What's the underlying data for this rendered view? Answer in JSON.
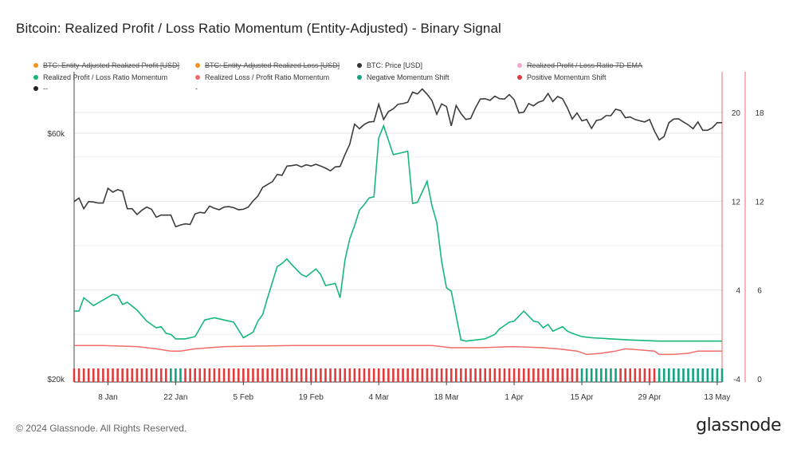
{
  "title": "Bitcoin: Realized Profit / Loss Ratio Momentum (Entity-Adjusted) - Binary Signal",
  "footer": "© 2024 Glassnode. All Rights Reserved.",
  "brand": "glassnode",
  "legend": [
    {
      "label": "BTC: Entity-Adjusted Realized Profit [USD]",
      "color": "#f7931a",
      "struck": true
    },
    {
      "label": "BTC: Entity-Adjusted Realized Loss [USD]",
      "color": "#f7931a",
      "struck": true
    },
    {
      "label": "BTC: Price [USD]",
      "color": "#333333",
      "struck": false
    },
    {
      "label": "Realized Profit / Loss Ratio 7D-EMA",
      "color": "#f4a6c8",
      "struck": true
    },
    {
      "label": "Realized Profit / Loss Ratio Momentum",
      "color": "#16b87a",
      "struck": false
    },
    {
      "label": "Realized Loss / Profit Ratio Momentum",
      "color": "#f26b6b",
      "struck": false
    },
    {
      "label": "Negative Momentum Shift",
      "color": "#13a380",
      "struck": false
    },
    {
      "label": "Positive Momentum Shift",
      "color": "#e03c3c",
      "struck": false
    },
    {
      "label": "--",
      "color": "#222222",
      "struck": false
    },
    {
      "label": "-",
      "color": "#222222",
      "struck": false
    }
  ],
  "colors": {
    "price": "#3c3c3c",
    "profit_momentum": "#16b87a",
    "loss_momentum": "#f26b6b",
    "negative_shift": "#13a380",
    "positive_shift": "#e03c3c",
    "grid": "#e6e6e6",
    "axis_red": "#f26b6b"
  },
  "chart_data": {
    "type": "line",
    "x_start": "2024-01-01",
    "x_end": "2024-05-14",
    "xticks": [
      "8 Jan",
      "22 Jan",
      "5 Feb",
      "19 Feb",
      "4 Mar",
      "18 Mar",
      "1 Apr",
      "15 Apr",
      "29 Apr",
      "13 May"
    ],
    "yaxis_price": {
      "label_ticks": [
        "$20k",
        "$60k"
      ],
      "ticks": [
        20000,
        60000
      ],
      "scale": "log"
    },
    "yaxis_ratio": {
      "ticks": [
        -4,
        4,
        12,
        20
      ],
      "range": [
        -4,
        24
      ]
    },
    "yaxis_signal": {
      "ticks": [
        0,
        6,
        12,
        18
      ]
    },
    "series": [
      {
        "name": "BTC: Price [USD]",
        "dates": [
          "2024-01-01",
          "2024-01-02",
          "2024-01-03",
          "2024-01-04",
          "2024-01-05",
          "2024-01-06",
          "2024-01-07",
          "2024-01-08",
          "2024-01-09",
          "2024-01-10",
          "2024-01-11",
          "2024-01-12",
          "2024-01-13",
          "2024-01-14",
          "2024-01-15",
          "2024-01-16",
          "2024-01-17",
          "2024-01-18",
          "2024-01-19",
          "2024-01-20",
          "2024-01-21",
          "2024-01-22",
          "2024-01-23",
          "2024-01-24",
          "2024-01-25",
          "2024-01-26",
          "2024-01-27",
          "2024-01-28",
          "2024-01-29",
          "2024-01-30",
          "2024-01-31",
          "2024-02-01",
          "2024-02-02",
          "2024-02-03",
          "2024-02-04",
          "2024-02-05",
          "2024-02-06",
          "2024-02-07",
          "2024-02-08",
          "2024-02-09",
          "2024-02-10",
          "2024-02-11",
          "2024-02-12",
          "2024-02-13",
          "2024-02-14",
          "2024-02-15",
          "2024-02-16",
          "2024-02-17",
          "2024-02-18",
          "2024-02-19",
          "2024-02-20",
          "2024-02-21",
          "2024-02-22",
          "2024-02-23",
          "2024-02-24",
          "2024-02-25",
          "2024-02-26",
          "2024-02-27",
          "2024-02-28",
          "2024-02-29",
          "2024-03-01",
          "2024-03-02",
          "2024-03-03",
          "2024-03-04",
          "2024-03-05",
          "2024-03-06",
          "2024-03-07",
          "2024-03-08",
          "2024-03-09",
          "2024-03-10",
          "2024-03-11",
          "2024-03-12",
          "2024-03-13",
          "2024-03-14",
          "2024-03-15",
          "2024-03-16",
          "2024-03-17",
          "2024-03-18",
          "2024-03-19",
          "2024-03-20",
          "2024-03-21",
          "2024-03-22",
          "2024-03-23",
          "2024-03-24",
          "2024-03-25",
          "2024-03-26",
          "2024-03-27",
          "2024-03-28",
          "2024-03-29",
          "2024-03-30",
          "2024-03-31",
          "2024-04-01",
          "2024-04-02",
          "2024-04-03",
          "2024-04-04",
          "2024-04-05",
          "2024-04-06",
          "2024-04-07",
          "2024-04-08",
          "2024-04-09",
          "2024-04-10",
          "2024-04-11",
          "2024-04-12",
          "2024-04-13",
          "2024-04-14",
          "2024-04-15",
          "2024-04-16",
          "2024-04-17",
          "2024-04-18",
          "2024-04-19",
          "2024-04-20",
          "2024-04-21",
          "2024-04-22",
          "2024-04-23",
          "2024-04-24",
          "2024-04-25",
          "2024-04-26",
          "2024-04-27",
          "2024-04-28",
          "2024-04-29",
          "2024-04-30",
          "2024-05-01",
          "2024-05-02",
          "2024-05-03",
          "2024-05-04",
          "2024-05-05",
          "2024-05-06",
          "2024-05-07",
          "2024-05-08",
          "2024-05-09",
          "2024-05-10",
          "2024-05-11",
          "2024-05-12",
          "2024-05-13",
          "2024-05-14"
        ],
        "values": [
          44200,
          44900,
          42800,
          44200,
          44100,
          43900,
          43900,
          46900,
          46100,
          46600,
          46300,
          42800,
          42800,
          41700,
          42500,
          43100,
          42700,
          41200,
          41600,
          41600,
          41600,
          39500,
          39800,
          40000,
          39900,
          41800,
          42100,
          42000,
          43300,
          42900,
          42600,
          43100,
          43200,
          43000,
          42600,
          42700,
          43100,
          44300,
          45300,
          47100,
          47700,
          48300,
          49900,
          49700,
          51800,
          51900,
          52100,
          51600,
          52100,
          51800,
          52200,
          51800,
          51300,
          50700,
          51600,
          51700,
          54500,
          57100,
          62500,
          61200,
          62400,
          63100,
          63200,
          68300,
          63800,
          66100,
          66900,
          68300,
          68500,
          68900,
          72100,
          71500,
          73100,
          71400,
          69400,
          65300,
          68400,
          67600,
          62000,
          67900,
          65500,
          63800,
          64100,
          67200,
          69900,
          70000,
          69500,
          70800,
          70000,
          69900,
          71300,
          69700,
          65700,
          65900,
          68500,
          67800,
          68900,
          69400,
          71600,
          69100,
          70700,
          70000,
          67200,
          63900,
          65700,
          63400,
          63800,
          61300,
          63500,
          63800,
          64900,
          64900,
          66800,
          66400,
          64300,
          64500,
          63800,
          63400,
          63100,
          63800,
          60600,
          58200,
          59100,
          62900,
          63900,
          64000,
          63100,
          62300,
          61200,
          63100,
          60800,
          60800,
          61500,
          62900,
          62900
        ],
        "color": "#3c3c3c"
      },
      {
        "name": "Realized Profit / Loss Ratio Momentum",
        "dates": [
          "2024-01-01",
          "2024-01-02",
          "2024-01-03",
          "2024-01-05",
          "2024-01-07",
          "2024-01-09",
          "2024-01-10",
          "2024-01-11",
          "2024-01-12",
          "2024-01-14",
          "2024-01-16",
          "2024-01-18",
          "2024-01-19",
          "2024-01-20",
          "2024-01-21",
          "2024-01-22",
          "2024-01-24",
          "2024-01-26",
          "2024-01-28",
          "2024-01-30",
          "2024-02-01",
          "2024-02-03",
          "2024-02-05",
          "2024-02-07",
          "2024-02-08",
          "2024-02-09",
          "2024-02-10",
          "2024-02-12",
          "2024-02-13",
          "2024-02-14",
          "2024-02-15",
          "2024-02-17",
          "2024-02-18",
          "2024-02-20",
          "2024-02-21",
          "2024-02-22",
          "2024-02-24",
          "2024-02-25",
          "2024-02-26",
          "2024-02-27",
          "2024-02-28",
          "2024-02-29",
          "2024-03-01",
          "2024-03-02",
          "2024-03-03",
          "2024-03-04",
          "2024-03-05",
          "2024-03-07",
          "2024-03-08",
          "2024-03-09",
          "2024-03-10",
          "2024-03-11",
          "2024-03-12",
          "2024-03-14",
          "2024-03-15",
          "2024-03-16",
          "2024-03-17",
          "2024-03-18",
          "2024-03-19",
          "2024-03-21",
          "2024-03-22",
          "2024-03-24",
          "2024-03-26",
          "2024-03-28",
          "2024-03-29",
          "2024-03-31",
          "2024-04-01",
          "2024-04-03",
          "2024-04-05",
          "2024-04-06",
          "2024-04-07",
          "2024-04-08",
          "2024-04-09",
          "2024-04-11",
          "2024-04-12",
          "2024-04-13",
          "2024-04-15",
          "2024-04-17",
          "2024-04-21",
          "2024-04-25",
          "2024-05-01",
          "2024-05-07",
          "2024-05-14"
        ],
        "values": [
          2.1,
          2.1,
          3.3,
          2.6,
          3.1,
          3.6,
          3.5,
          2.7,
          2.9,
          2.2,
          1.2,
          0.6,
          0.7,
          0.1,
          0,
          -0.4,
          -0.4,
          -0.2,
          1.3,
          1.5,
          1.3,
          1.1,
          -0.3,
          0.2,
          1.2,
          1.8,
          3.3,
          6.1,
          6.4,
          6.8,
          6.3,
          5.4,
          5.2,
          5.9,
          5.4,
          4.4,
          4.6,
          3.3,
          6.7,
          8.6,
          9.8,
          11.2,
          11.7,
          12.3,
          12.4,
          17.7,
          18.8,
          16.2,
          16.3,
          16.4,
          16.5,
          11.8,
          11.9,
          13.8,
          11.6,
          10.1,
          6.6,
          4.2,
          3.9,
          -0.5,
          -0.6,
          -0.5,
          -0.4,
          0,
          0.5,
          1.1,
          1.2,
          2.1,
          1.2,
          1.1,
          0.6,
          0.9,
          0.3,
          0.7,
          0.3,
          0.1,
          -0.2,
          -0.3,
          -0.4,
          -0.5,
          -0.6,
          -0.6,
          -0.6
        ],
        "color": "#16b87a"
      },
      {
        "name": "Realized Loss / Profit Ratio Momentum",
        "dates": [
          "2024-01-01",
          "2024-01-07",
          "2024-01-14",
          "2024-01-18",
          "2024-01-21",
          "2024-01-23",
          "2024-01-26",
          "2024-01-29",
          "2024-02-01",
          "2024-02-15",
          "2024-03-01",
          "2024-03-15",
          "2024-03-19",
          "2024-03-25",
          "2024-04-01",
          "2024-04-07",
          "2024-04-10",
          "2024-04-14",
          "2024-04-16",
          "2024-04-19",
          "2024-04-22",
          "2024-04-24",
          "2024-04-27",
          "2024-04-30",
          "2024-05-01",
          "2024-05-04",
          "2024-05-07",
          "2024-05-09",
          "2024-05-14"
        ],
        "values": [
          -1.0,
          -1.0,
          -1.1,
          -1.3,
          -1.5,
          -1.5,
          -1.3,
          -1.2,
          -1.1,
          -1.0,
          -1.0,
          -1.0,
          -1.2,
          -1.2,
          -1.1,
          -1.2,
          -1.3,
          -1.5,
          -1.8,
          -1.7,
          -1.5,
          -1.3,
          -1.4,
          -1.5,
          -1.8,
          -1.8,
          -1.7,
          -1.5,
          -1.5
        ],
        "color": "#f26b6b"
      }
    ],
    "binary_signal": {
      "negative_shift_ranges": [
        [
          "2024-01-21",
          "2024-01-23"
        ],
        [
          "2024-04-15",
          "2024-04-22"
        ],
        [
          "2024-05-01",
          "2024-05-14"
        ]
      ],
      "positive_shift_ranges": [
        [
          "2024-01-01",
          "2024-01-20"
        ],
        [
          "2024-01-24",
          "2024-04-14"
        ],
        [
          "2024-04-23",
          "2024-04-30"
        ]
      ]
    }
  }
}
